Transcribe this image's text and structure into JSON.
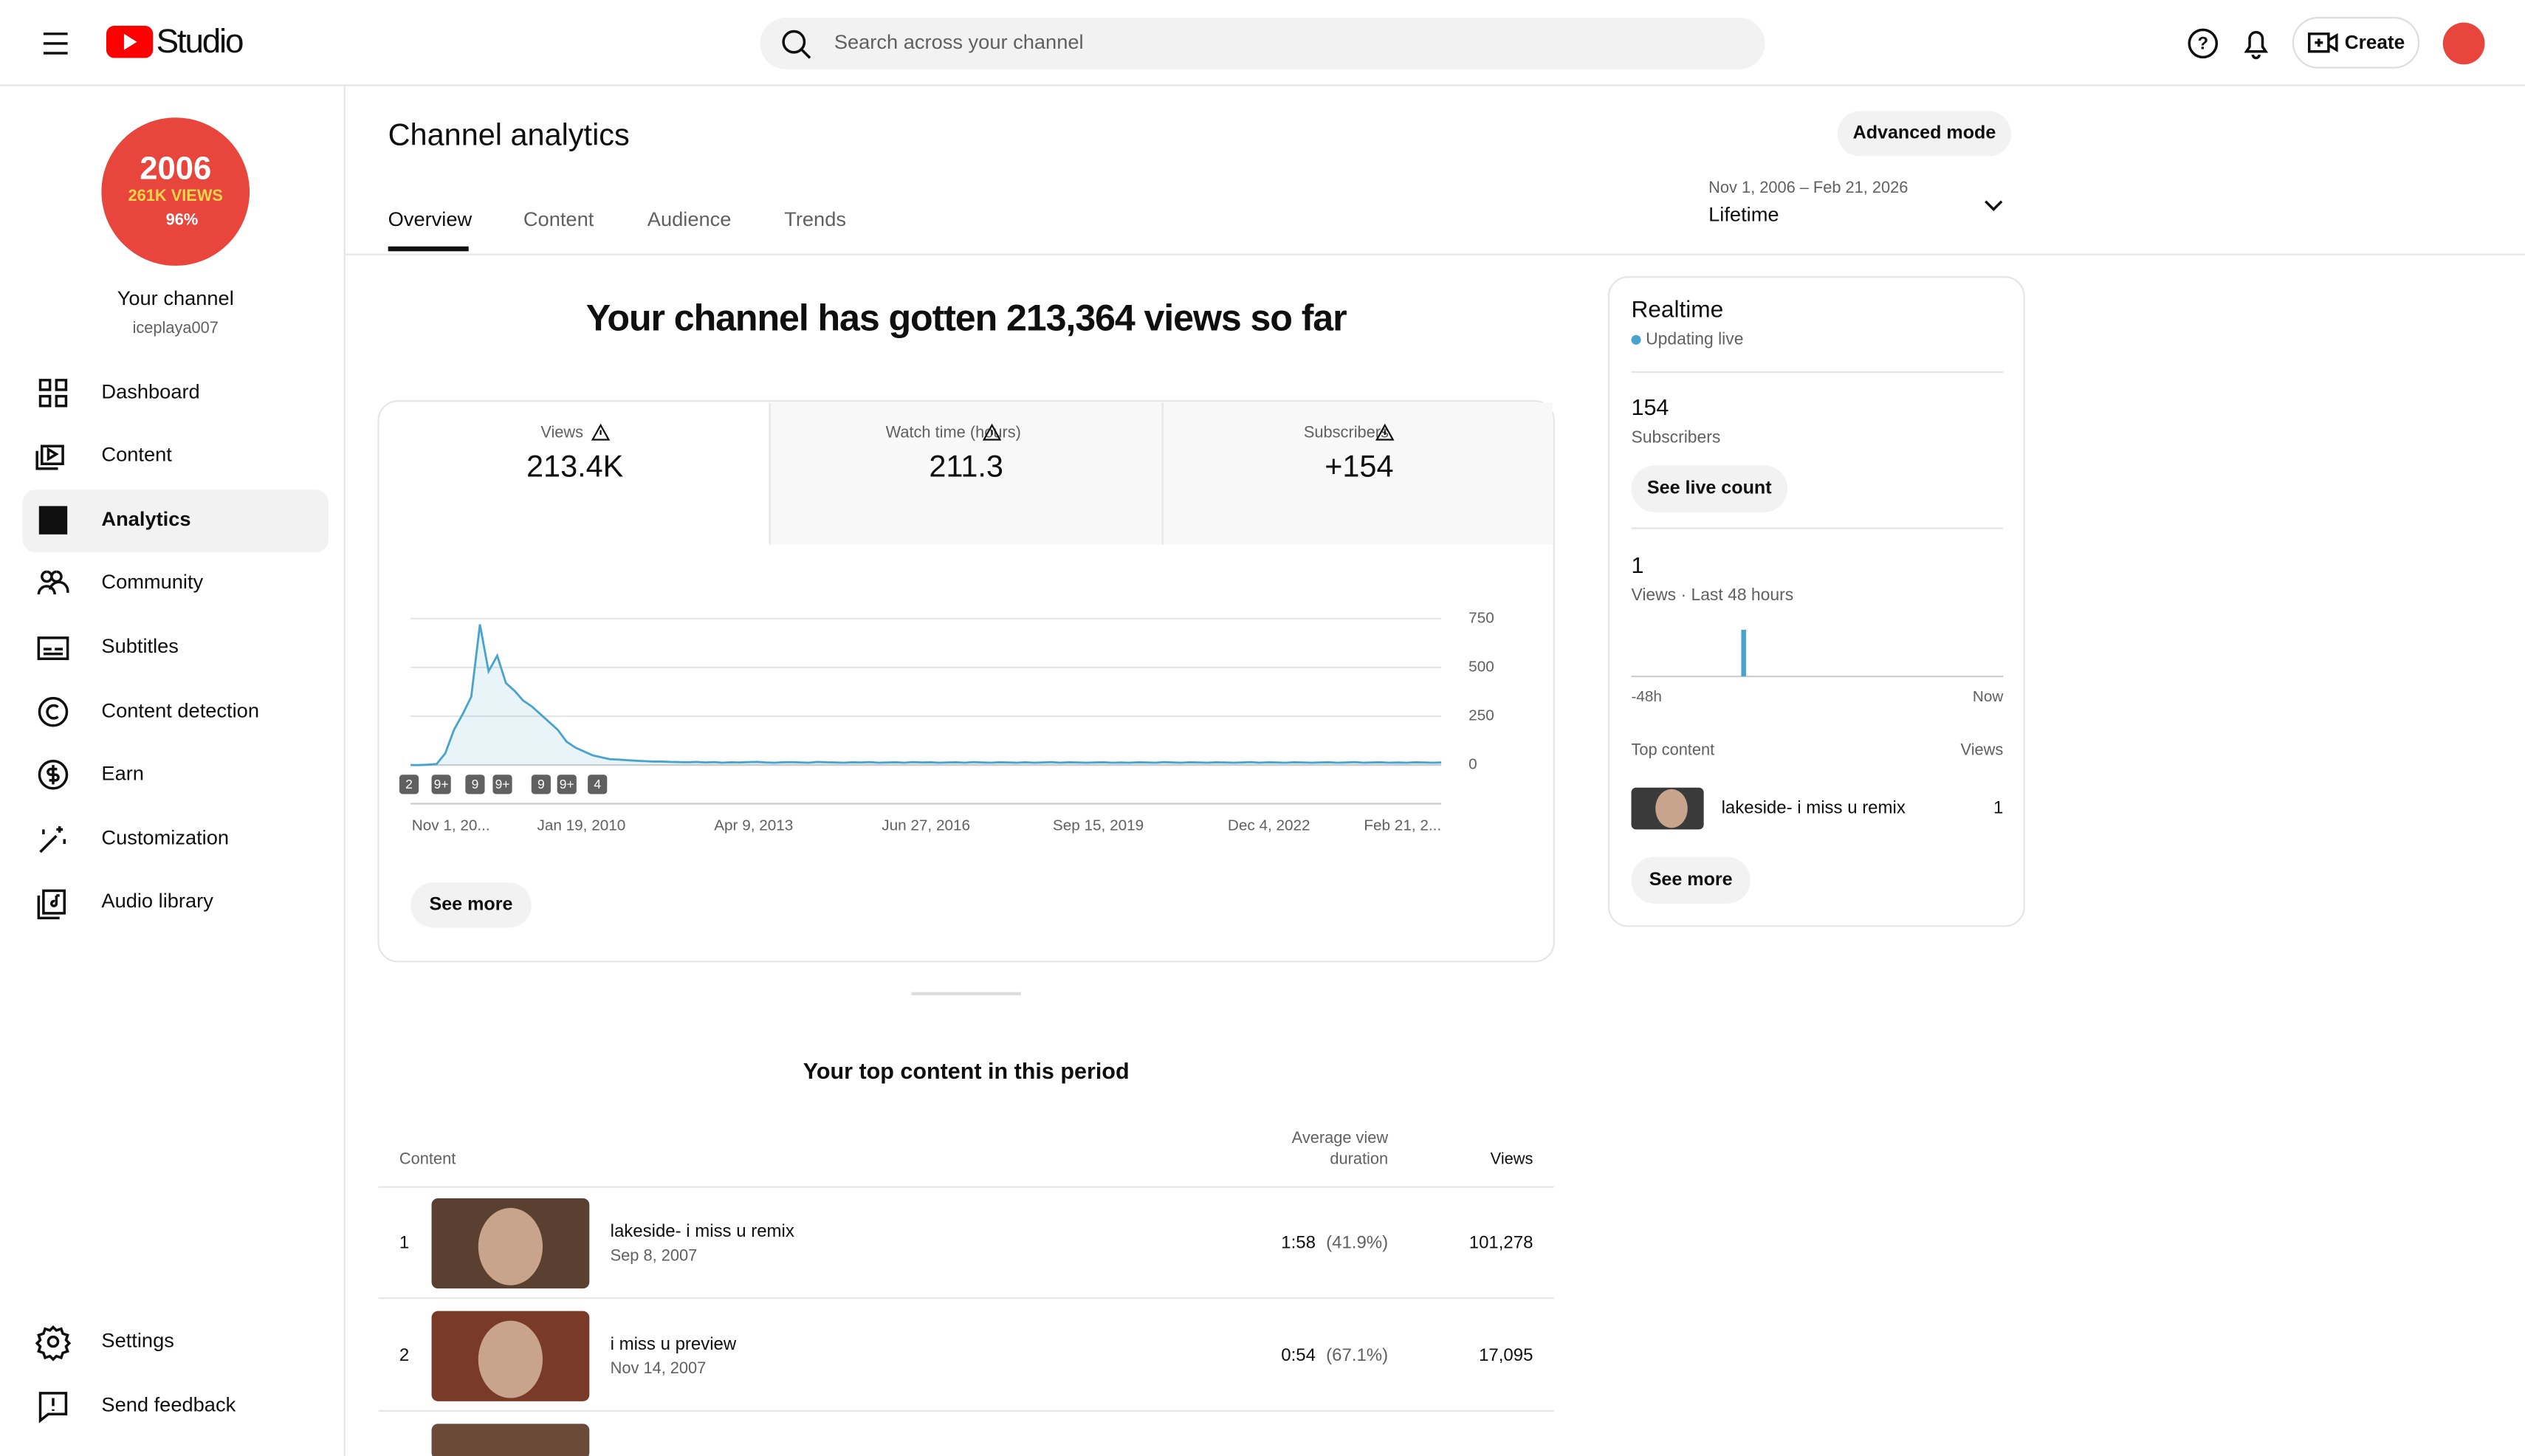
{
  "header": {
    "logo": "Studio",
    "search_placeholder": "Search across your channel",
    "create": "Create"
  },
  "sidebar": {
    "avatar_lines": [
      "2006",
      "261K VIEWS",
      "96%"
    ],
    "channel_title": "Your channel",
    "channel_handle": "iceplaya007",
    "nav": [
      "Dashboard",
      "Content",
      "Analytics",
      "Community",
      "Subtitles",
      "Content detection",
      "Earn",
      "Customization",
      "Audio library"
    ],
    "footer_nav": [
      "Settings",
      "Send feedback"
    ]
  },
  "page": {
    "title": "Channel analytics",
    "advanced": "Advanced mode",
    "tabs": [
      "Overview",
      "Content",
      "Audience",
      "Trends"
    ],
    "date_range": "Nov 1, 2006 – Feb 21, 2026",
    "period": "Lifetime"
  },
  "summary": {
    "headline": "Your channel has gotten 213,364 views so far",
    "metrics": [
      {
        "label": "Views",
        "value": "213.4K"
      },
      {
        "label": "Watch time (hours)",
        "value": "211.3"
      },
      {
        "label": "Subscribers",
        "value": "+154"
      }
    ],
    "see_more": "See more"
  },
  "chart_data": {
    "type": "line",
    "color": "#4aa3cc",
    "ylim": [
      0,
      800
    ],
    "yticks": [
      0,
      250,
      500,
      750
    ],
    "grid": true,
    "xtick_labels": [
      "Nov 1, 20...",
      "Jan 19, 2010",
      "Apr 9, 2013",
      "Jun 27, 2016",
      "Sep 15, 2019",
      "Dec 4, 2022",
      "Feb 21, 2..."
    ],
    "annotations": [
      "2",
      "9+",
      "9",
      "9+",
      "9",
      "9+",
      "4"
    ],
    "values": [
      0,
      0,
      2,
      5,
      60,
      180,
      260,
      350,
      720,
      480,
      560,
      420,
      380,
      330,
      300,
      260,
      220,
      180,
      120,
      90,
      70,
      50,
      40,
      30,
      28,
      25,
      22,
      20,
      18,
      18,
      16,
      15,
      14,
      16,
      13,
      15,
      12,
      14,
      13,
      15,
      16,
      13,
      12,
      14,
      15,
      13,
      12,
      16,
      14,
      13,
      12,
      14,
      13,
      15,
      12,
      13,
      14,
      12,
      15,
      13,
      14,
      12,
      13,
      14,
      12,
      15,
      13,
      12,
      14,
      13,
      12,
      14,
      12,
      13,
      15,
      12,
      14,
      13,
      12,
      13,
      14,
      12,
      13,
      12,
      14,
      13,
      12,
      15,
      13,
      12,
      14,
      13,
      12,
      14,
      13,
      12,
      13,
      15,
      12,
      14,
      13,
      12,
      14,
      13,
      12,
      13,
      14,
      12,
      13,
      15,
      12,
      13,
      14,
      12,
      13,
      12,
      14,
      13,
      12,
      13
    ]
  },
  "realtime": {
    "title": "Realtime",
    "status": "Updating live",
    "subscribers": "154",
    "subscribers_label": "Subscribers",
    "live_button": "See live count",
    "views": "1",
    "views_label": "Views · Last 48 hours",
    "axis_start": "-48h",
    "axis_end": "Now",
    "top_label": "Top content",
    "views_header": "Views",
    "top_item": {
      "title": "lakeside- i miss u remix",
      "views": "1"
    },
    "see_more": "See more",
    "chart": {
      "type": "bar",
      "color": "#4aa3cc",
      "ylim": [
        0,
        1
      ],
      "values": [
        0,
        0,
        0,
        0,
        0,
        0,
        0,
        0,
        0,
        0,
        0,
        0,
        0,
        0,
        1,
        0,
        0,
        0,
        0,
        0,
        0,
        0,
        0,
        0,
        0,
        0,
        0,
        0,
        0,
        0,
        0,
        0,
        0,
        0,
        0,
        0,
        0,
        0,
        0,
        0,
        0,
        0,
        0,
        0,
        0,
        0,
        0,
        0
      ]
    }
  },
  "top_content": {
    "title": "Your top content in this period",
    "headers": {
      "content": "Content",
      "avg_line1": "Average view",
      "avg_line2": "duration",
      "views": "Views"
    },
    "rows": [
      {
        "rank": "1",
        "title": "lakeside- i miss u remix",
        "date": "Sep 8, 2007",
        "duration": "1:58",
        "percent": "(41.9%)",
        "views": "101,278"
      },
      {
        "rank": "2",
        "title": "i miss u preview",
        "date": "Nov 14, 2007",
        "duration": "0:54",
        "percent": "(67.1%)",
        "views": "17,095"
      }
    ]
  }
}
